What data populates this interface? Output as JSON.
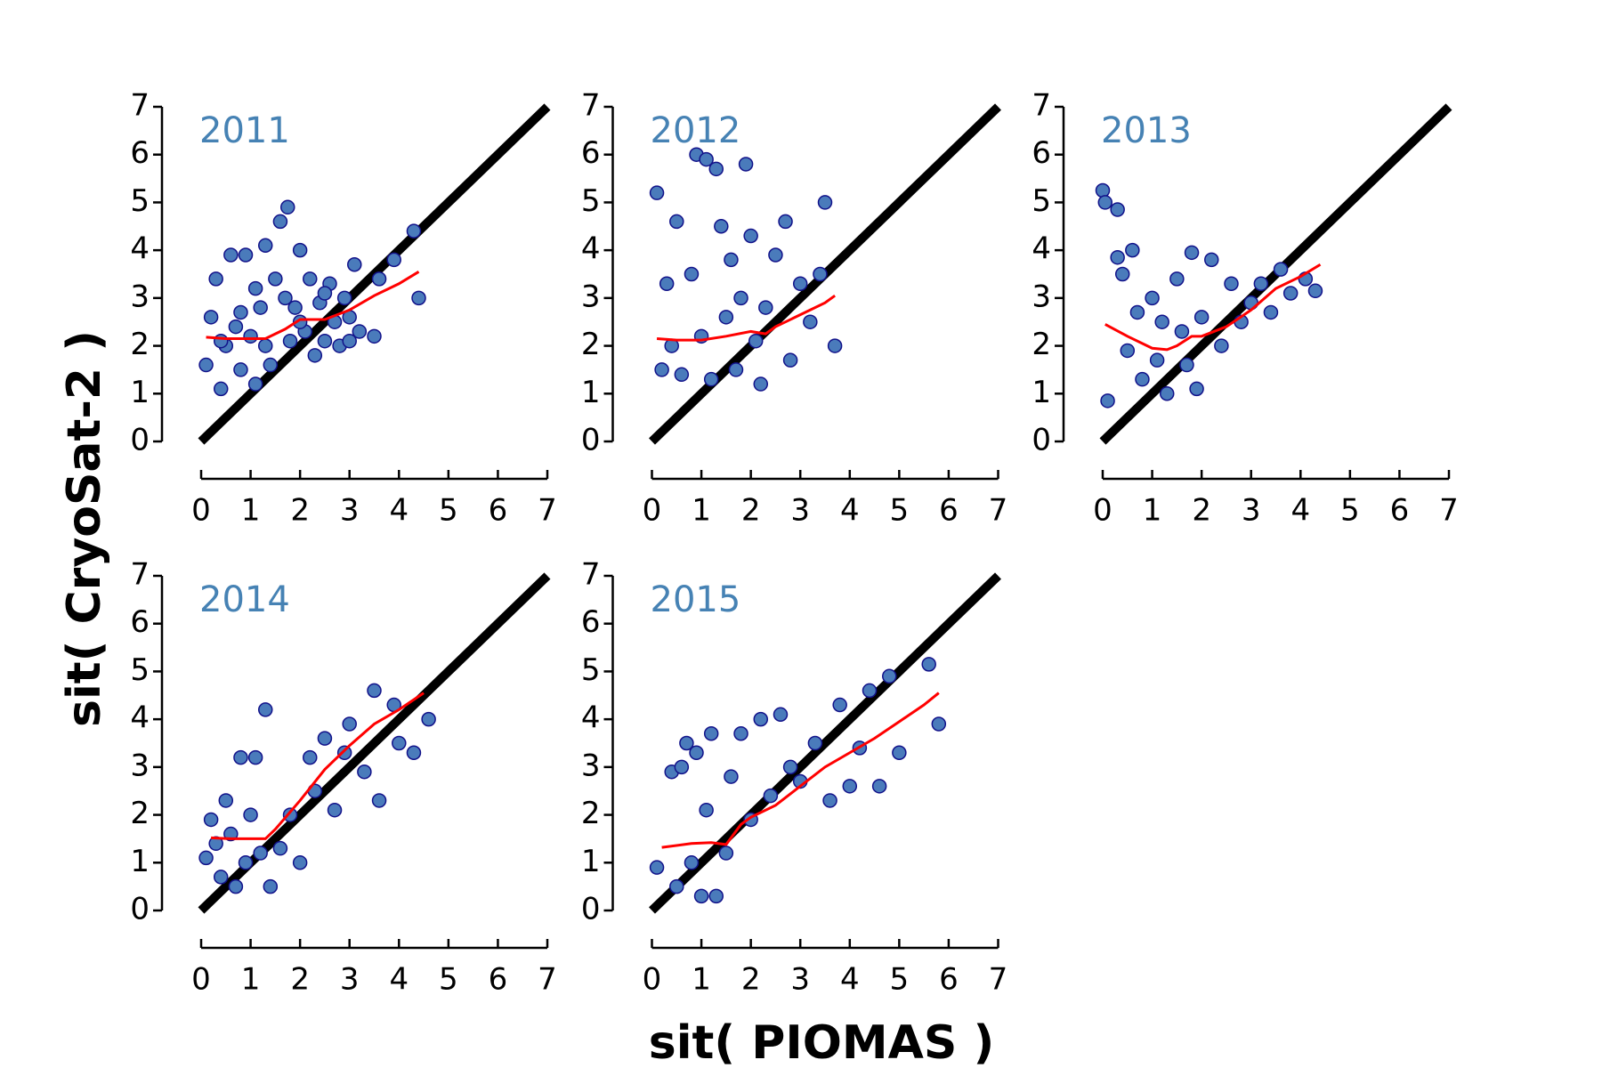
{
  "axis_labels": {
    "x": "sit( PIOMAS )",
    "y": "sit( CryoSat-2 )"
  },
  "chart_data": [
    {
      "type": "scatter",
      "title": "2011",
      "xlim": [
        0,
        7
      ],
      "ylim": [
        0,
        7
      ],
      "xticks": [
        0,
        1,
        2,
        3,
        4,
        5,
        6,
        7
      ],
      "yticks": [
        0,
        1,
        2,
        3,
        4,
        5,
        6,
        7
      ],
      "reference_line": true,
      "reference_color": "#000000",
      "points": {
        "color": "#4a7bbb",
        "edge_color": "#12128a",
        "x": [
          0.1,
          0.2,
          0.3,
          0.4,
          0.5,
          0.6,
          0.7,
          0.8,
          0.9,
          1.0,
          1.1,
          1.2,
          1.3,
          1.4,
          1.5,
          1.6,
          1.7,
          1.75,
          1.8,
          1.9,
          2.0,
          2.1,
          2.2,
          2.3,
          2.4,
          2.5,
          2.6,
          2.7,
          2.8,
          2.9,
          3.0,
          3.1,
          3.2,
          3.5,
          3.6,
          3.9,
          4.3,
          4.4,
          0.8,
          1.3,
          2.0,
          2.5,
          3.0,
          0.4,
          1.1
        ],
        "y": [
          1.6,
          2.6,
          3.4,
          1.1,
          2.0,
          3.9,
          2.4,
          1.5,
          3.9,
          2.2,
          1.2,
          2.8,
          4.1,
          1.6,
          3.4,
          4.6,
          3.0,
          4.9,
          2.1,
          2.8,
          4.0,
          2.3,
          3.4,
          1.8,
          2.9,
          2.1,
          3.3,
          2.5,
          2.0,
          3.0,
          2.6,
          3.7,
          2.3,
          2.2,
          3.4,
          3.8,
          4.4,
          3.0,
          2.7,
          2.0,
          2.5,
          3.1,
          2.1,
          2.1,
          3.2
        ]
      },
      "fit": {
        "color": "#ff0000",
        "x": [
          0.1,
          0.5,
          1.0,
          1.3,
          1.7,
          2.0,
          2.5,
          3.0,
          3.5,
          4.0,
          4.4
        ],
        "y": [
          2.18,
          2.15,
          2.15,
          2.15,
          2.35,
          2.55,
          2.55,
          2.75,
          3.05,
          3.3,
          3.55
        ]
      }
    },
    {
      "type": "scatter",
      "title": "2012",
      "xlim": [
        0,
        7
      ],
      "ylim": [
        0,
        7
      ],
      "xticks": [
        0,
        1,
        2,
        3,
        4,
        5,
        6,
        7
      ],
      "yticks": [
        0,
        1,
        2,
        3,
        4,
        5,
        6,
        7
      ],
      "reference_line": true,
      "reference_color": "#000000",
      "points": {
        "color": "#4a7bbb",
        "edge_color": "#12128a",
        "x": [
          0.1,
          0.2,
          0.3,
          0.4,
          0.5,
          0.6,
          0.8,
          0.9,
          1.0,
          1.1,
          1.2,
          1.3,
          1.4,
          1.5,
          1.6,
          1.7,
          1.8,
          1.9,
          2.0,
          2.1,
          2.2,
          2.3,
          2.5,
          2.7,
          2.8,
          3.0,
          3.2,
          3.4,
          3.5,
          3.7
        ],
        "y": [
          5.2,
          1.5,
          3.3,
          2.0,
          4.6,
          1.4,
          3.5,
          6.0,
          2.2,
          5.9,
          1.3,
          5.7,
          4.5,
          2.6,
          3.8,
          1.5,
          3.0,
          5.8,
          4.3,
          2.1,
          1.2,
          2.8,
          3.9,
          4.6,
          1.7,
          3.3,
          2.5,
          3.5,
          5.0,
          2.0
        ]
      },
      "fit": {
        "color": "#ff0000",
        "x": [
          0.1,
          0.5,
          1.0,
          1.5,
          2.0,
          2.3,
          2.5,
          3.0,
          3.5,
          3.7
        ],
        "y": [
          2.15,
          2.12,
          2.12,
          2.2,
          2.3,
          2.25,
          2.4,
          2.65,
          2.9,
          3.05
        ]
      }
    },
    {
      "type": "scatter",
      "title": "2013",
      "xlim": [
        0,
        7
      ],
      "ylim": [
        0,
        7
      ],
      "xticks": [
        0,
        1,
        2,
        3,
        4,
        5,
        6,
        7
      ],
      "yticks": [
        0,
        1,
        2,
        3,
        4,
        5,
        6,
        7
      ],
      "reference_line": true,
      "reference_color": "#000000",
      "points": {
        "color": "#4a7bbb",
        "edge_color": "#12128a",
        "x": [
          0.0,
          0.05,
          0.3,
          0.3,
          0.4,
          0.5,
          0.6,
          0.7,
          0.8,
          1.0,
          1.1,
          1.2,
          1.3,
          1.5,
          1.6,
          1.7,
          1.8,
          1.9,
          2.0,
          2.2,
          2.4,
          2.6,
          2.8,
          3.0,
          3.2,
          3.4,
          3.6,
          3.8,
          4.1,
          4.3,
          0.1
        ],
        "y": [
          5.25,
          5.0,
          4.85,
          3.85,
          3.5,
          1.9,
          4.0,
          2.7,
          1.3,
          3.0,
          1.7,
          2.5,
          1.0,
          3.4,
          2.3,
          1.6,
          3.95,
          1.1,
          2.6,
          3.8,
          2.0,
          3.3,
          2.5,
          2.9,
          3.3,
          2.7,
          3.6,
          3.1,
          3.4,
          3.15,
          0.85
        ]
      },
      "fit": {
        "color": "#ff0000",
        "x": [
          0.05,
          0.5,
          1.0,
          1.3,
          1.5,
          1.8,
          2.0,
          2.5,
          3.0,
          3.5,
          4.0,
          4.4
        ],
        "y": [
          2.45,
          2.2,
          1.95,
          1.92,
          2.0,
          2.2,
          2.2,
          2.4,
          2.75,
          3.2,
          3.45,
          3.7
        ]
      }
    },
    {
      "type": "scatter",
      "title": "2014",
      "xlim": [
        0,
        7
      ],
      "ylim": [
        0,
        7
      ],
      "xticks": [
        0,
        1,
        2,
        3,
        4,
        5,
        6,
        7
      ],
      "yticks": [
        0,
        1,
        2,
        3,
        4,
        5,
        6,
        7
      ],
      "reference_line": true,
      "reference_color": "#000000",
      "points": {
        "color": "#4a7bbb",
        "edge_color": "#12128a",
        "x": [
          0.1,
          0.2,
          0.3,
          0.4,
          0.5,
          0.6,
          0.7,
          0.8,
          0.9,
          1.0,
          1.1,
          1.2,
          1.3,
          1.4,
          1.6,
          1.8,
          2.0,
          2.2,
          2.3,
          2.5,
          2.7,
          2.9,
          3.0,
          3.3,
          3.5,
          3.6,
          3.9,
          4.0,
          4.3,
          4.6
        ],
        "y": [
          1.1,
          1.9,
          1.4,
          0.7,
          2.3,
          1.6,
          0.5,
          3.2,
          1.0,
          2.0,
          3.2,
          1.2,
          4.2,
          0.5,
          1.3,
          2.0,
          1.0,
          3.2,
          2.5,
          3.6,
          2.1,
          3.3,
          3.9,
          2.9,
          4.6,
          2.3,
          4.3,
          3.5,
          3.3,
          4.0
        ]
      },
      "fit": {
        "color": "#ff0000",
        "x": [
          0.2,
          0.6,
          1.0,
          1.3,
          1.5,
          2.0,
          2.5,
          3.0,
          3.5,
          4.0,
          4.5
        ],
        "y": [
          1.52,
          1.5,
          1.5,
          1.5,
          1.7,
          2.3,
          2.95,
          3.45,
          3.9,
          4.2,
          4.55
        ]
      }
    },
    {
      "type": "scatter",
      "title": "2015",
      "xlim": [
        0,
        7
      ],
      "ylim": [
        0,
        7
      ],
      "xticks": [
        0,
        1,
        2,
        3,
        4,
        5,
        6,
        7
      ],
      "yticks": [
        0,
        1,
        2,
        3,
        4,
        5,
        6,
        7
      ],
      "reference_line": true,
      "reference_color": "#000000",
      "points": {
        "color": "#4a7bbb",
        "edge_color": "#12128a",
        "x": [
          0.1,
          0.4,
          0.5,
          0.6,
          0.7,
          0.8,
          0.9,
          1.0,
          1.1,
          1.2,
          1.3,
          1.5,
          1.6,
          1.8,
          2.0,
          2.2,
          2.4,
          2.6,
          2.8,
          3.0,
          3.3,
          3.6,
          3.8,
          4.0,
          4.2,
          4.4,
          4.6,
          4.8,
          5.0,
          5.6,
          5.8
        ],
        "y": [
          0.9,
          2.9,
          0.5,
          3.0,
          3.5,
          1.0,
          3.3,
          0.3,
          2.1,
          3.7,
          0.3,
          1.2,
          2.8,
          3.7,
          1.9,
          4.0,
          2.4,
          4.1,
          3.0,
          2.7,
          3.5,
          2.3,
          4.3,
          2.6,
          3.4,
          4.6,
          2.6,
          4.9,
          3.3,
          5.15,
          3.9
        ]
      },
      "fit": {
        "color": "#ff0000",
        "x": [
          0.2,
          0.8,
          1.2,
          1.5,
          1.8,
          2.0,
          2.5,
          3.0,
          3.5,
          4.0,
          4.5,
          5.0,
          5.5,
          5.8
        ],
        "y": [
          1.32,
          1.4,
          1.42,
          1.38,
          1.8,
          1.95,
          2.2,
          2.6,
          3.0,
          3.3,
          3.6,
          3.95,
          4.3,
          4.55
        ]
      }
    }
  ]
}
